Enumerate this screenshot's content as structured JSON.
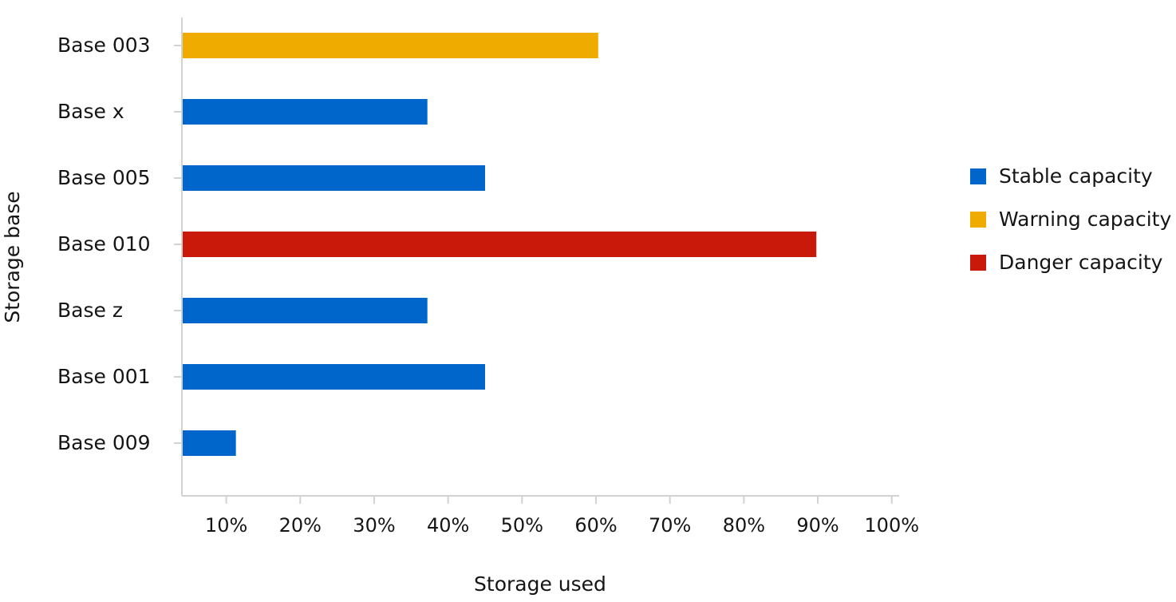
{
  "chart_data": {
    "type": "bar",
    "orientation": "horizontal",
    "xlabel": "Storage used",
    "ylabel": "Storage base",
    "xlim": [
      4,
      101
    ],
    "xticks": [
      10,
      20,
      30,
      40,
      50,
      60,
      70,
      80,
      90,
      100
    ],
    "xtick_labels": [
      "10%",
      "20%",
      "30%",
      "40%",
      "50%",
      "60%",
      "70%",
      "80%",
      "90%",
      "100%"
    ],
    "categories": [
      "Base 003",
      "Base x",
      "Base 005",
      "Base 010",
      "Base z",
      "Base 001",
      "Base 009"
    ],
    "values": [
      60.3,
      37.2,
      45,
      89.8,
      37.2,
      45,
      11.3
    ],
    "bar_series": [
      "Warning capacity",
      "Stable capacity",
      "Stable capacity",
      "Danger capacity",
      "Stable capacity",
      "Stable capacity",
      "Stable capacity"
    ],
    "series": [
      {
        "name": "Stable capacity",
        "color": "#0066cc"
      },
      {
        "name": "Warning capacity",
        "color": "#f0ab00"
      },
      {
        "name": "Danger capacity",
        "color": "#c9190b"
      }
    ],
    "legend_position": "right",
    "grid": false
  }
}
